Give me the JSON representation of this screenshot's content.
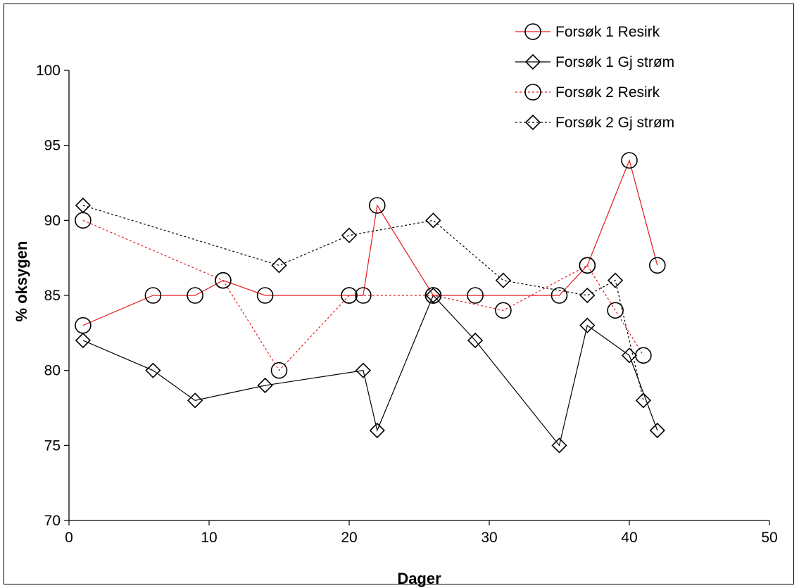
{
  "chart_data": {
    "type": "line",
    "xlabel": "Dager",
    "ylabel": "% oksygen",
    "xlim": [
      0,
      50
    ],
    "ylim": [
      70,
      100
    ],
    "xticks": [
      0,
      10,
      20,
      30,
      40,
      50
    ],
    "yticks": [
      70,
      75,
      80,
      85,
      90,
      95,
      100
    ],
    "grid": false,
    "legend_position": "top-right",
    "series": [
      {
        "name": "Forsøk 1 Resirk",
        "color": "#e31a1c",
        "line_style": "solid",
        "marker": "circle",
        "x": [
          1,
          6,
          9,
          11,
          14,
          20,
          21,
          22,
          26,
          29,
          35,
          37,
          40,
          42
        ],
        "y": [
          83,
          85,
          85,
          86,
          85,
          85,
          85,
          91,
          85,
          85,
          85,
          87,
          94,
          87
        ]
      },
      {
        "name": "Forsøk 1 Gj strøm",
        "color": "#000000",
        "line_style": "solid",
        "marker": "diamond",
        "x": [
          1,
          6,
          9,
          14,
          21,
          22,
          26,
          29,
          35,
          37,
          40,
          42
        ],
        "y": [
          82,
          80,
          78,
          79,
          80,
          76,
          85,
          82,
          75,
          83,
          81,
          76
        ]
      },
      {
        "name": "Forsøk 2 Resirk",
        "color": "#e31a1c",
        "line_style": "dotted",
        "marker": "circle",
        "x": [
          1,
          11,
          15,
          20,
          26,
          31,
          37,
          39,
          41
        ],
        "y": [
          90,
          86,
          80,
          85,
          85,
          84,
          87,
          84,
          81
        ]
      },
      {
        "name": "Forsøk 2 Gj strøm",
        "color": "#000000",
        "line_style": "dotted",
        "marker": "diamond",
        "x": [
          1,
          15,
          20,
          26,
          31,
          37,
          39,
          41
        ],
        "y": [
          91,
          87,
          89,
          90,
          86,
          85,
          86,
          78
        ]
      }
    ]
  }
}
